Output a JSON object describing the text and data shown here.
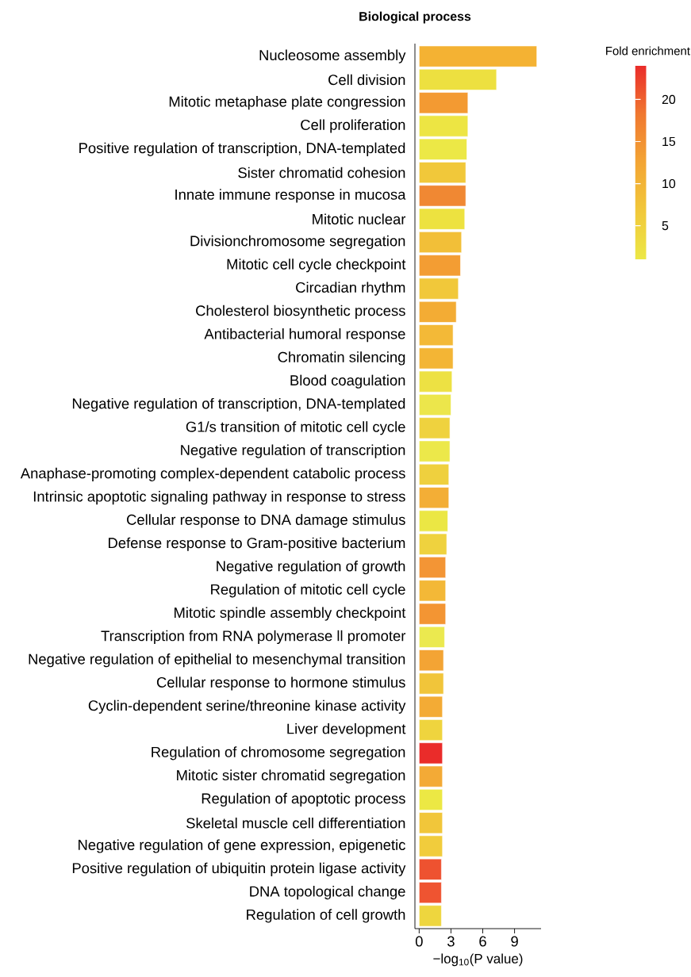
{
  "chart_data": {
    "type": "bar",
    "orientation": "horizontal",
    "title": "Biological process",
    "xlabel": "−log$_{10}$(P value)",
    "clabel": "Fold enrichment",
    "categories": [
      "Nucleosome assembly",
      "Cell division",
      "Mitotic metaphase plate congression",
      "Cell proliferation",
      "Positive regulation of transcription, DNA-templated",
      "Sister chromatid cohesion",
      "Innate immune response in mucosa",
      "Mitotic nuclear",
      "Divisionchromosome segregation",
      "Mitotic cell cycle checkpoint",
      "Circadian rhythm",
      "Cholesterol biosynthetic process",
      "Antibacterial humoral response",
      "Chromatin silencing",
      "Blood coagulation",
      "Negative regulation of transcription, DNA-templated",
      "G1/s transition of mitotic cell cycle",
      "Negative regulation of transcription",
      "Anaphase-promoting complex-dependent catabolic process",
      "Intrinsic apoptotic signaling pathway in response to stress",
      "Cellular response to DNA damage stimulus",
      "Defense response to Gram-positive bacterium",
      "Negative regulation of growth",
      "Regulation of mitotic cell cycle",
      "Mitotic spindle assembly checkpoint",
      "Transcription from RNA polymerase ll promoter",
      "Negative regulation of epithelial to mesenchymal transition",
      "Cellular response to hormone stimulus",
      "Cyclin-dependent serine/threonine kinase activity",
      "Liver development",
      "Regulation of chromosome segregation",
      "Mitotic sister chromatid segregation",
      "Regulation of apoptotic process",
      "Skeletal muscle cell differentiation",
      "Negative regulation of gene expression, epigenetic",
      "Positive regulation of ubiquitin protein ligase activity",
      "DNA topological change",
      "Regulation of cell growth"
    ],
    "values": [
      11.1,
      7.3,
      4.6,
      4.6,
      4.5,
      4.4,
      4.4,
      4.3,
      4.0,
      3.9,
      3.7,
      3.5,
      3.2,
      3.2,
      3.1,
      3.0,
      2.9,
      2.9,
      2.8,
      2.8,
      2.7,
      2.6,
      2.5,
      2.5,
      2.5,
      2.4,
      2.3,
      2.3,
      2.2,
      2.2,
      2.2,
      2.2,
      2.2,
      2.2,
      2.2,
      2.1,
      2.1,
      2.1
    ],
    "colors": [
      "#f4b233",
      "#ede040",
      "#f39a32",
      "#ede543",
      "#ece846",
      "#f1c83a",
      "#f08833",
      "#ede240",
      "#f2bf38",
      "#f39d33",
      "#f1c83a",
      "#f3ac34",
      "#f3b937",
      "#f3b535",
      "#ede143",
      "#ece64b",
      "#efd23e",
      "#ece84a",
      "#efd03e",
      "#f3ae36",
      "#ebe744",
      "#efd23e",
      "#f39535",
      "#f3b837",
      "#f39533",
      "#ebe94f",
      "#f3a434",
      "#f1c53a",
      "#f3ab35",
      "#efd43e",
      "#ea2c2a",
      "#f3aa36",
      "#ece844",
      "#f1c63a",
      "#f1cc3c",
      "#ee5230",
      "#ef5431",
      "#eed63e"
    ],
    "xlim": [
      -0.4,
      11.5
    ],
    "xticks": [
      0,
      3,
      6,
      9
    ],
    "clim": [
      1,
      24
    ],
    "cticks": [
      5,
      10,
      15,
      20
    ]
  }
}
